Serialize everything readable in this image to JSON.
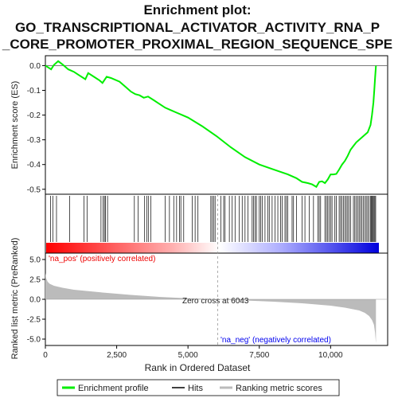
{
  "chart_data": {
    "type": "line",
    "title": "Enrichment plot:",
    "title_lines": [
      "GO_TRANSCRIPTIONAL_ACTIVATOR_ACTIVITY_RNA_P",
      "_CORE_PROMOTER_PROXIMAL_REGION_SEQUENCE_SPE"
    ],
    "es_panel": {
      "ylabel": "Enrichment score (ES)",
      "ylim": [
        -0.52,
        0.04
      ],
      "yticks": [
        0.0,
        -0.1,
        -0.2,
        -0.3,
        -0.4,
        -0.5
      ],
      "ytick_labels": [
        "0.0",
        "-0.1",
        "-0.2",
        "-0.3",
        "-0.4",
        "-0.5"
      ],
      "series": [
        {
          "name": "Enrichment profile",
          "color": "#00ee00",
          "x": [
            0,
            200,
            300,
            450,
            600,
            800,
            1000,
            1200,
            1400,
            1500,
            1700,
            1900,
            2000,
            2150,
            2300,
            2600,
            2800,
            3000,
            3150,
            3300,
            3450,
            3600,
            3800,
            4000,
            4200,
            4400,
            4600,
            4800,
            5000,
            5500,
            6000,
            6500,
            7000,
            7500,
            8000,
            8500,
            8800,
            9000,
            9200,
            9350,
            9500,
            9600,
            9700,
            9800,
            9900,
            10000,
            10100,
            10200,
            10300,
            10400,
            10500,
            10600,
            10700,
            10800,
            10900,
            11000,
            11100,
            11200,
            11300,
            11400,
            11450,
            11500,
            11530,
            11560,
            11590
          ],
          "y": [
            0.0,
            -0.015,
            0.003,
            0.018,
            0.005,
            -0.015,
            -0.025,
            -0.04,
            -0.055,
            -0.03,
            -0.045,
            -0.06,
            -0.07,
            -0.045,
            -0.05,
            -0.065,
            -0.085,
            -0.105,
            -0.115,
            -0.12,
            -0.13,
            -0.125,
            -0.14,
            -0.155,
            -0.17,
            -0.18,
            -0.19,
            -0.2,
            -0.21,
            -0.245,
            -0.285,
            -0.33,
            -0.37,
            -0.4,
            -0.42,
            -0.44,
            -0.455,
            -0.47,
            -0.475,
            -0.48,
            -0.49,
            -0.47,
            -0.468,
            -0.475,
            -0.46,
            -0.44,
            -0.44,
            -0.438,
            -0.42,
            -0.4,
            -0.385,
            -0.365,
            -0.34,
            -0.325,
            -0.31,
            -0.3,
            -0.29,
            -0.28,
            -0.27,
            -0.24,
            -0.2,
            -0.15,
            -0.1,
            -0.05,
            0.0
          ]
        }
      ]
    },
    "hits": {
      "name": "Hits",
      "positions": [
        180,
        260,
        390,
        850,
        1350,
        1460,
        1950,
        2020,
        2070,
        2110,
        2180,
        3120,
        3250,
        3480,
        3560,
        3620,
        3700,
        4200,
        4350,
        4500,
        4600,
        4700,
        4750,
        4850,
        5150,
        5250,
        5350,
        5800,
        5850,
        5900,
        5950,
        6150,
        6250,
        6300,
        6450,
        6550,
        6650,
        6800,
        6900,
        7000,
        7100,
        7250,
        7300,
        7350,
        7400,
        7500,
        7550,
        7600,
        7700,
        7800,
        7850,
        7950,
        8050,
        8150,
        8250,
        8300,
        8400,
        8450,
        8500,
        8650,
        8700,
        8800,
        9000,
        9100,
        9250,
        9400,
        9550,
        9600,
        9650,
        9800,
        9850,
        9900,
        9950,
        10000,
        10050,
        10150,
        10200,
        10300,
        10350,
        10400,
        10450,
        10500,
        10550,
        10600,
        10650,
        10700,
        10800,
        10850,
        10900,
        10950,
        11000,
        11050,
        11100,
        11150,
        11200,
        11250,
        11300,
        11350,
        11400,
        11430,
        11460,
        11490,
        11520,
        11550,
        11580
      ]
    },
    "rank_panel": {
      "ylabel": "Ranked list metric (PreRanked)",
      "ylim": [
        -5.8,
        5.8
      ],
      "yticks": [
        5.0,
        2.5,
        0.0,
        -2.5,
        -5.0
      ],
      "ytick_labels": [
        "5.0",
        "2.5",
        "0.0",
        "-2.5",
        "-5.0"
      ],
      "series_name": "Ranking metric scores",
      "color": "#bbbbbb",
      "x": [
        0,
        30,
        80,
        150,
        300,
        600,
        1000,
        2000,
        3000,
        4000,
        5000,
        6043,
        7000,
        8000,
        9000,
        10000,
        10500,
        11000,
        11200,
        11350,
        11450,
        11520,
        11560,
        11590
      ],
      "y": [
        3.3,
        2.6,
        2.2,
        1.95,
        1.7,
        1.45,
        1.2,
        0.85,
        0.55,
        0.3,
        0.12,
        0.0,
        -0.15,
        -0.3,
        -0.5,
        -0.8,
        -1.05,
        -1.4,
        -1.7,
        -2.1,
        -2.6,
        -3.2,
        -4.2,
        -5.5
      ],
      "zero_cross_label": "Zero cross at 6043",
      "zero_cross": 6043,
      "pos_label": "'na_pos' (positively correlated)",
      "neg_label": "'na_neg' (negatively correlated)"
    },
    "xaxis": {
      "label": "Rank in Ordered Dataset",
      "xlim": [
        0,
        12000
      ],
      "ticks": [
        0,
        2500,
        5000,
        7500,
        10000
      ],
      "tick_labels": [
        "0",
        "2,500",
        "5,000",
        "7,500",
        "10,000"
      ]
    },
    "legend": {
      "position": "bottom",
      "items": [
        {
          "label": "Enrichment profile",
          "color": "#00ee00"
        },
        {
          "label": "Hits",
          "color": "#000000"
        },
        {
          "label": "Ranking metric scores",
          "color": "#bbbbbb"
        }
      ]
    },
    "colors": {
      "positive": "#ee0000",
      "negative": "#0000ee",
      "neutral": "#ffffff"
    }
  }
}
